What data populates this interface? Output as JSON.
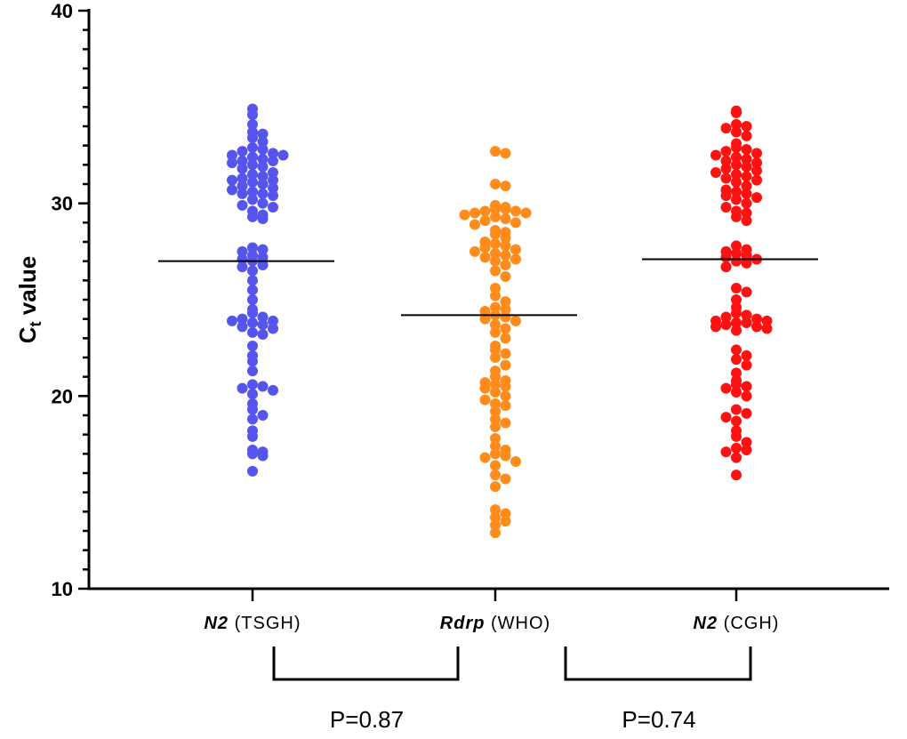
{
  "chart_data": {
    "type": "scatter",
    "ylabel_main": "C",
    "ylabel_sub": "t",
    "ylabel_rest": " value",
    "ylim": [
      10,
      40
    ],
    "yticks": [
      "10",
      "20",
      "30",
      "40"
    ],
    "grid": false,
    "categories": [
      {
        "italic": "N2",
        "rest": " (TSGH)"
      },
      {
        "italic": "Rdrp",
        "rest": " (WHO)"
      },
      {
        "italic": "N2",
        "rest": " (CGH)"
      }
    ],
    "series": [
      {
        "color": "#5555EE",
        "mean": 27.0,
        "values": [
          34.9,
          34.6,
          34.1,
          33.7,
          33.6,
          33.4,
          33.2,
          32.9,
          32.8,
          32.7,
          32.6,
          32.5,
          32.5,
          32.4,
          32.3,
          32.2,
          32.2,
          32.1,
          32.0,
          31.9,
          31.8,
          31.6,
          31.5,
          31.4,
          31.3,
          31.2,
          31.2,
          31.1,
          31.0,
          30.9,
          30.8,
          30.7,
          30.6,
          30.5,
          30.5,
          30.4,
          30.2,
          30.0,
          29.9,
          29.8,
          29.6,
          29.4,
          29.3,
          29.2,
          27.7,
          27.6,
          27.5,
          27.3,
          27.2,
          27.1,
          27.0,
          26.8,
          26.7,
          26.5,
          26.0,
          25.5,
          25.0,
          24.5,
          24.3,
          24.1,
          24.0,
          23.9,
          23.9,
          23.8,
          23.7,
          23.6,
          23.5,
          23.3,
          23.2,
          22.6,
          22.1,
          21.8,
          21.3,
          20.6,
          20.5,
          20.4,
          20.3,
          20.1,
          19.6,
          19.3,
          19.0,
          18.8,
          18.2,
          17.9,
          17.2,
          17.1,
          17.0,
          16.9,
          16.1
        ],
        "p_to_next": "P=0.87"
      },
      {
        "color": "#FF8C1A",
        "mean": 24.2,
        "values": [
          32.7,
          32.6,
          31.0,
          30.9,
          29.9,
          29.8,
          29.7,
          29.7,
          29.6,
          29.6,
          29.5,
          29.5,
          29.4,
          29.3,
          29.2,
          29.1,
          29.0,
          28.9,
          28.6,
          28.5,
          28.4,
          28.2,
          28.0,
          27.9,
          27.8,
          27.7,
          27.6,
          27.5,
          27.4,
          27.3,
          27.2,
          27.1,
          27.0,
          26.8,
          26.5,
          26.2,
          25.6,
          25.2,
          24.9,
          24.6,
          24.5,
          24.4,
          24.2,
          24.1,
          24.0,
          23.9,
          23.7,
          23.5,
          23.3,
          23.0,
          22.6,
          22.4,
          22.2,
          22.0,
          21.6,
          21.3,
          21.0,
          20.8,
          20.7,
          20.6,
          20.5,
          20.4,
          20.2,
          20.0,
          19.8,
          19.6,
          19.5,
          19.2,
          18.8,
          18.6,
          18.4,
          17.8,
          17.4,
          17.2,
          17.0,
          16.9,
          16.8,
          16.6,
          16.4,
          15.9,
          15.7,
          15.3,
          14.1,
          13.9,
          13.7,
          13.5,
          13.3,
          12.9
        ],
        "p_to_next": "P=0.74"
      },
      {
        "color": "#FF1111",
        "mean": 27.1,
        "values": [
          34.8,
          34.7,
          34.1,
          34.0,
          33.9,
          33.7,
          33.5,
          33.1,
          32.9,
          32.8,
          32.7,
          32.6,
          32.5,
          32.4,
          32.3,
          32.2,
          32.1,
          32.0,
          31.9,
          31.8,
          31.7,
          31.6,
          31.5,
          31.4,
          31.3,
          31.2,
          31.1,
          30.9,
          30.7,
          30.6,
          30.5,
          30.4,
          30.3,
          30.2,
          30.0,
          29.8,
          29.6,
          29.5,
          29.3,
          29.1,
          27.8,
          27.6,
          27.5,
          27.4,
          27.3,
          27.2,
          27.1,
          27.0,
          26.9,
          26.7,
          25.6,
          25.4,
          25.0,
          24.6,
          24.3,
          24.2,
          24.1,
          24.0,
          23.9,
          23.9,
          23.8,
          23.8,
          23.7,
          23.6,
          23.6,
          23.5,
          23.4,
          22.4,
          22.1,
          21.9,
          21.6,
          21.2,
          20.8,
          20.6,
          20.5,
          20.4,
          20.2,
          20.0,
          19.3,
          19.1,
          18.9,
          18.7,
          18.2,
          17.9,
          17.6,
          17.3,
          17.2,
          17.1,
          16.8,
          15.9
        ]
      }
    ]
  }
}
